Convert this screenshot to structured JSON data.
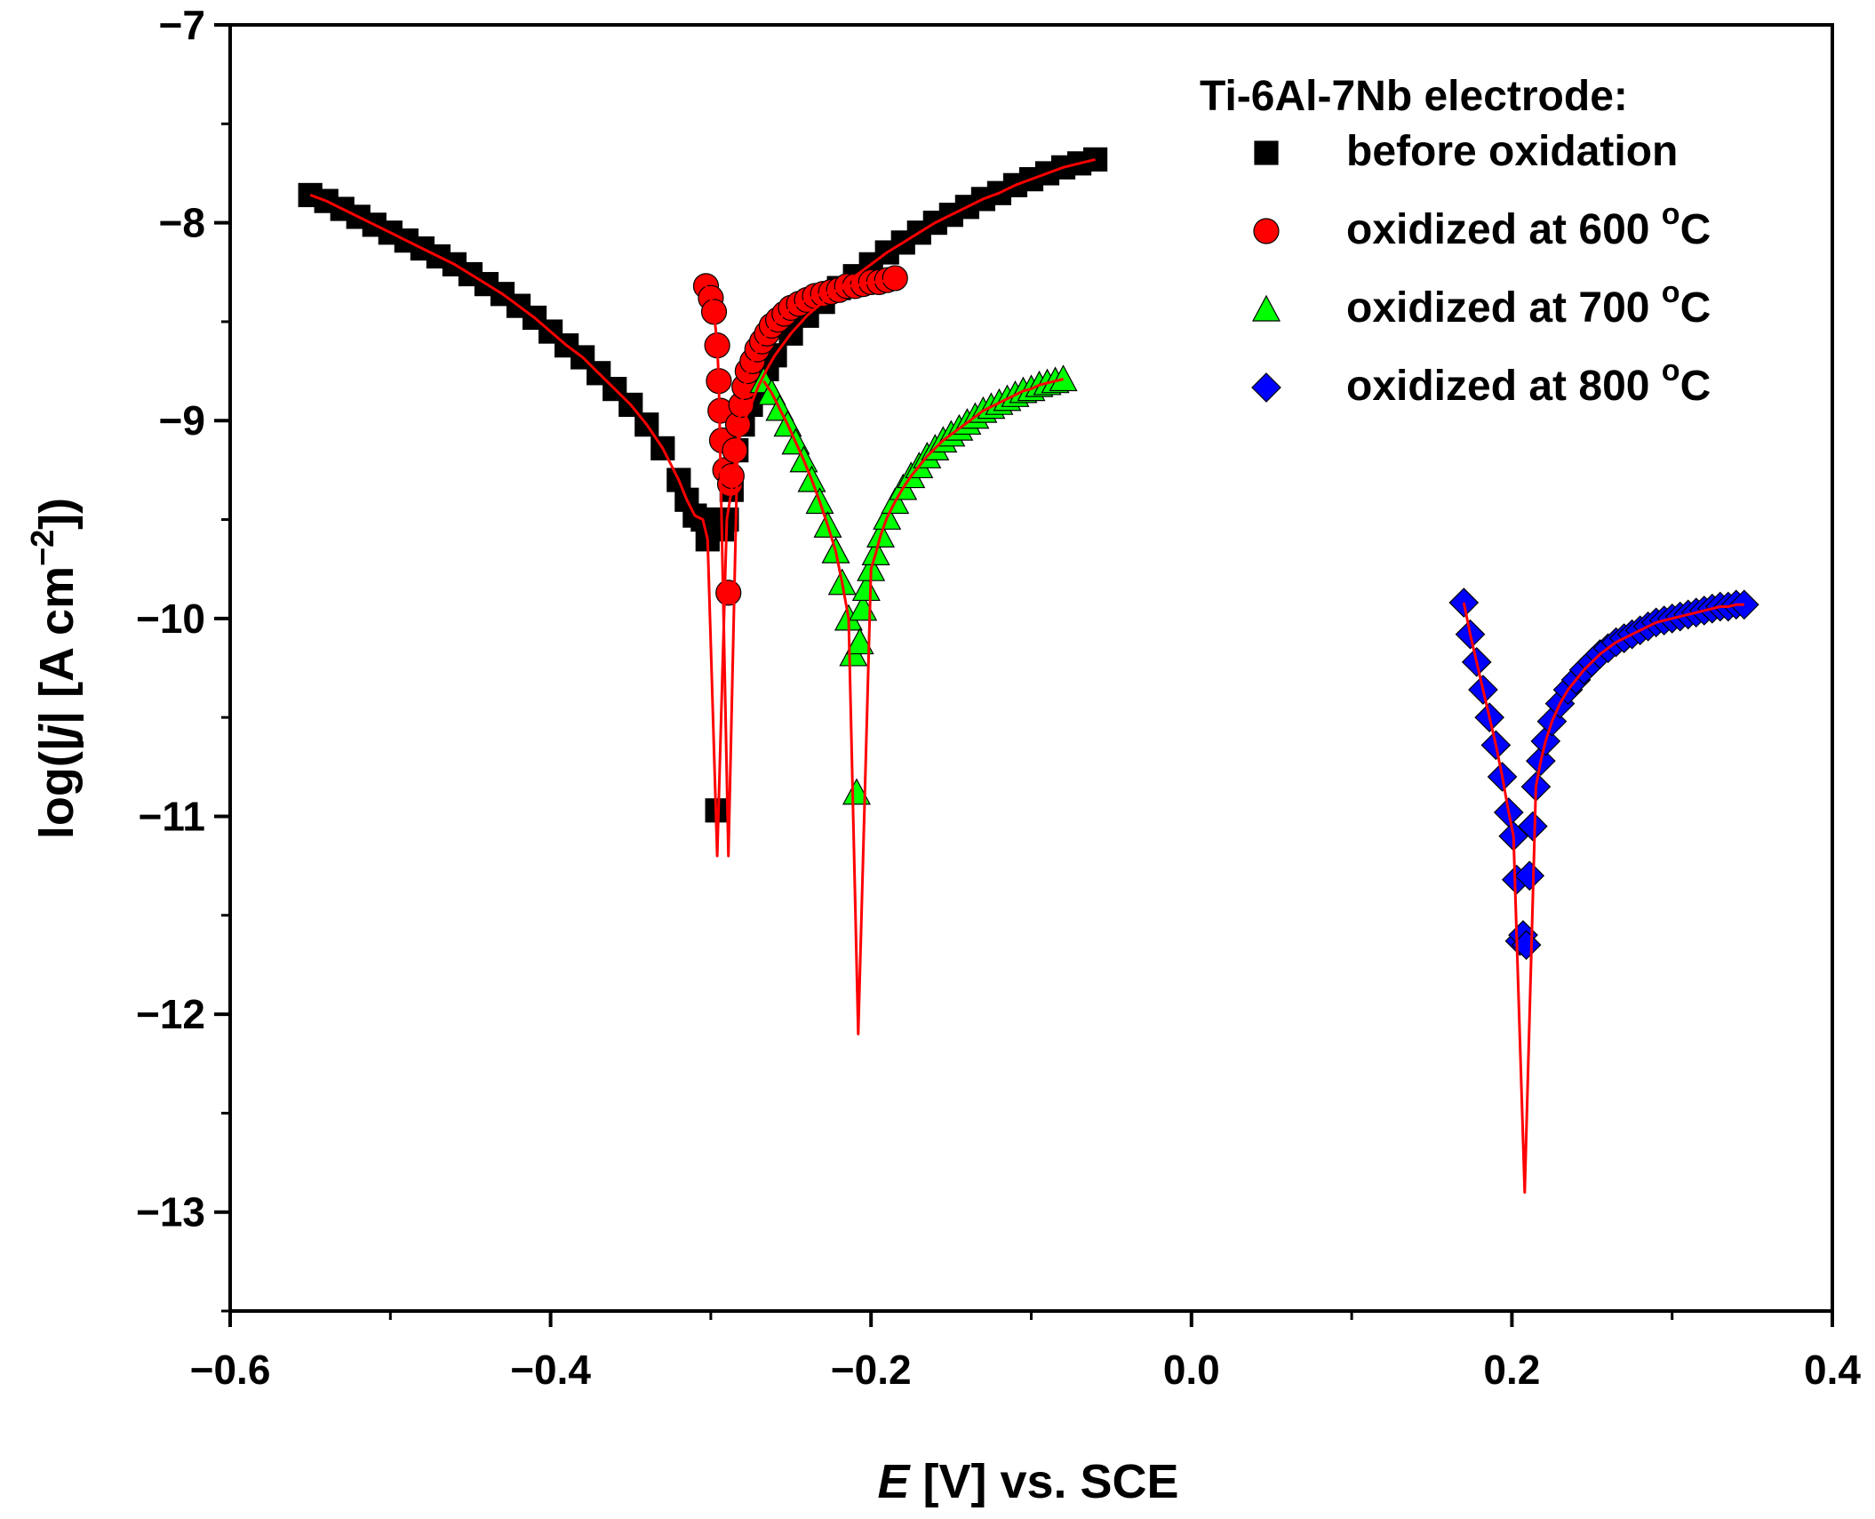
{
  "chart_data": {
    "type": "scatter",
    "title": "",
    "xlabel": {
      "italic": "E",
      "rest": " [V] vs. SCE"
    },
    "ylabel": {
      "prefix": "log(|",
      "italic": "j",
      "mid": "| [A cm",
      "sup": "−2",
      "suffix": "])"
    },
    "xlim": [
      -0.6,
      0.4
    ],
    "ylim": [
      -13.5,
      -7
    ],
    "xticks": [
      {
        "value": -0.6,
        "label": "−0.6"
      },
      {
        "value": -0.4,
        "label": "−0.4"
      },
      {
        "value": -0.2,
        "label": "−0.2"
      },
      {
        "value": 0.0,
        "label": "0.0"
      },
      {
        "value": 0.2,
        "label": "0.2"
      },
      {
        "value": 0.4,
        "label": "0.4"
      }
    ],
    "yticks": [
      {
        "value": -7,
        "label": "−7"
      },
      {
        "value": -8,
        "label": "−8"
      },
      {
        "value": -9,
        "label": "−9"
      },
      {
        "value": -10,
        "label": "−10"
      },
      {
        "value": -11,
        "label": "−11"
      },
      {
        "value": -12,
        "label": "−12"
      },
      {
        "value": -13,
        "label": "−13"
      }
    ],
    "x_minor_step": 0.1,
    "y_minor_step": 0.5,
    "grid": false,
    "legend": {
      "position": "top-right",
      "title": "Ti-6Al-7Nb electrode:",
      "entries": [
        {
          "text": "before oxidation",
          "marker": "square",
          "color": "#000000",
          "sup": ""
        },
        {
          "text": "oxidized at 600 ",
          "marker": "circle",
          "color": "#ff0000",
          "sup": "o",
          "unit": "C"
        },
        {
          "text": "oxidized at 700 ",
          "marker": "triangle",
          "color": "#00ff00",
          "sup": "o",
          "unit": "C"
        },
        {
          "text": "oxidized at 800 ",
          "marker": "diamond",
          "color": "#0000ff",
          "sup": "o",
          "unit": "C"
        }
      ]
    },
    "fit_color": "#ff0000",
    "series": [
      {
        "name": "before oxidation",
        "marker": "square",
        "color": "#000000",
        "ecorr": -0.296,
        "fit_min": -11.2,
        "x": [
          -0.55,
          -0.54,
          -0.53,
          -0.52,
          -0.51,
          -0.5,
          -0.49,
          -0.48,
          -0.47,
          -0.46,
          -0.45,
          -0.44,
          -0.43,
          -0.42,
          -0.41,
          -0.4,
          -0.39,
          -0.38,
          -0.37,
          -0.36,
          -0.35,
          -0.34,
          -0.33,
          -0.32,
          -0.315,
          -0.31,
          -0.305,
          -0.302,
          -0.299,
          -0.296,
          -0.293,
          -0.29,
          -0.287,
          -0.284,
          -0.28,
          -0.275,
          -0.27,
          -0.265,
          -0.26,
          -0.25,
          -0.24,
          -0.23,
          -0.22,
          -0.21,
          -0.2,
          -0.19,
          -0.18,
          -0.17,
          -0.16,
          -0.15,
          -0.14,
          -0.13,
          -0.12,
          -0.11,
          -0.1,
          -0.09,
          -0.08,
          -0.07,
          -0.06
        ],
        "y": [
          -7.86,
          -7.89,
          -7.93,
          -7.97,
          -8.01,
          -8.05,
          -8.09,
          -8.13,
          -8.17,
          -8.21,
          -8.26,
          -8.31,
          -8.36,
          -8.42,
          -8.48,
          -8.55,
          -8.62,
          -8.68,
          -8.76,
          -8.84,
          -8.92,
          -9.02,
          -9.14,
          -9.3,
          -9.4,
          -9.48,
          -9.5,
          -9.6,
          -9.5,
          -10.97,
          -9.55,
          -9.5,
          -9.35,
          -9.15,
          -9.02,
          -8.92,
          -8.82,
          -8.74,
          -8.67,
          -8.56,
          -8.47,
          -8.4,
          -8.33,
          -8.27,
          -8.21,
          -8.15,
          -8.1,
          -8.05,
          -8.0,
          -7.96,
          -7.92,
          -7.88,
          -7.85,
          -7.81,
          -7.78,
          -7.75,
          -7.72,
          -7.7,
          -7.68
        ]
      },
      {
        "name": "oxidized at 600 °C",
        "marker": "circle",
        "color": "#ff0000",
        "ecorr": -0.289,
        "fit_min": -11.2,
        "x": [
          -0.303,
          -0.3,
          -0.298,
          -0.296,
          -0.295,
          -0.294,
          -0.293,
          -0.291,
          -0.289,
          -0.288,
          -0.287,
          -0.285,
          -0.283,
          -0.281,
          -0.279,
          -0.277,
          -0.274,
          -0.271,
          -0.268,
          -0.265,
          -0.262,
          -0.258,
          -0.254,
          -0.25,
          -0.245,
          -0.24,
          -0.235,
          -0.23,
          -0.225,
          -0.22,
          -0.215,
          -0.21,
          -0.205,
          -0.2,
          -0.195,
          -0.19,
          -0.185
        ],
        "y": [
          -8.32,
          -8.38,
          -8.45,
          -8.62,
          -8.8,
          -8.95,
          -9.1,
          -9.25,
          -9.87,
          -9.32,
          -9.28,
          -9.15,
          -9.02,
          -8.92,
          -8.83,
          -8.75,
          -8.7,
          -8.64,
          -8.6,
          -8.56,
          -8.52,
          -8.49,
          -8.46,
          -8.43,
          -8.41,
          -8.39,
          -8.37,
          -8.36,
          -8.35,
          -8.34,
          -8.32,
          -8.32,
          -8.31,
          -8.3,
          -8.3,
          -8.29,
          -8.28
        ]
      },
      {
        "name": "oxidized at 700 °C",
        "marker": "triangle",
        "color": "#00ff00",
        "ecorr": -0.208,
        "fit_min": -12.1,
        "x": [
          -0.267,
          -0.262,
          -0.257,
          -0.252,
          -0.247,
          -0.242,
          -0.237,
          -0.232,
          -0.227,
          -0.222,
          -0.218,
          -0.214,
          -0.211,
          -0.209,
          -0.207,
          -0.205,
          -0.203,
          -0.2,
          -0.197,
          -0.194,
          -0.19,
          -0.185,
          -0.18,
          -0.175,
          -0.17,
          -0.165,
          -0.16,
          -0.155,
          -0.15,
          -0.145,
          -0.14,
          -0.135,
          -0.13,
          -0.125,
          -0.12,
          -0.115,
          -0.11,
          -0.105,
          -0.1,
          -0.095,
          -0.09,
          -0.085,
          -0.08
        ],
        "y": [
          -8.8,
          -8.86,
          -8.94,
          -9.02,
          -9.11,
          -9.2,
          -9.3,
          -9.41,
          -9.53,
          -9.66,
          -9.82,
          -10.0,
          -10.18,
          -10.88,
          -10.12,
          -9.95,
          -9.85,
          -9.75,
          -9.67,
          -9.58,
          -9.49,
          -9.41,
          -9.34,
          -9.28,
          -9.23,
          -9.18,
          -9.14,
          -9.1,
          -9.07,
          -9.04,
          -9.01,
          -8.98,
          -8.95,
          -8.93,
          -8.91,
          -8.89,
          -8.87,
          -8.85,
          -8.84,
          -8.82,
          -8.81,
          -8.8,
          -8.79
        ]
      },
      {
        "name": "oxidized at 800 °C",
        "marker": "diamond",
        "color": "#0000ff",
        "ecorr": 0.208,
        "fit_min": -12.9,
        "x": [
          0.17,
          0.174,
          0.178,
          0.182,
          0.186,
          0.19,
          0.194,
          0.198,
          0.201,
          0.203,
          0.205,
          0.207,
          0.209,
          0.211,
          0.213,
          0.215,
          0.218,
          0.221,
          0.225,
          0.23,
          0.235,
          0.24,
          0.245,
          0.25,
          0.255,
          0.26,
          0.265,
          0.27,
          0.275,
          0.28,
          0.285,
          0.29,
          0.295,
          0.3,
          0.305,
          0.31,
          0.315,
          0.32,
          0.325,
          0.33,
          0.335,
          0.34,
          0.345
        ],
        "y": [
          -9.92,
          -10.08,
          -10.22,
          -10.36,
          -10.5,
          -10.64,
          -10.8,
          -10.98,
          -11.1,
          -11.32,
          -11.63,
          -11.6,
          -11.65,
          -11.3,
          -11.05,
          -10.85,
          -10.72,
          -10.62,
          -10.52,
          -10.43,
          -10.36,
          -10.31,
          -10.26,
          -10.22,
          -10.18,
          -10.15,
          -10.12,
          -10.1,
          -10.08,
          -10.06,
          -10.04,
          -10.02,
          -10.01,
          -10.0,
          -9.99,
          -9.98,
          -9.97,
          -9.96,
          -9.95,
          -9.94,
          -9.94,
          -9.93,
          -9.93
        ]
      }
    ]
  }
}
